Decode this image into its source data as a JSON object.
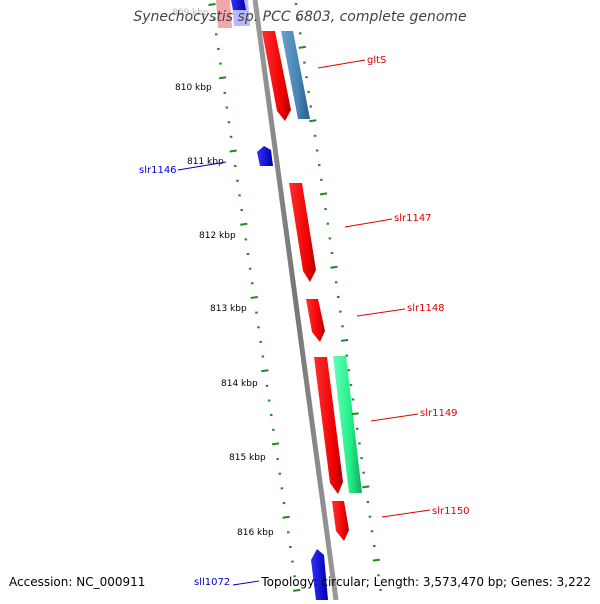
{
  "title": "Synechocystis sp. PCC 6803, complete genome",
  "accession": "Accession: NC_000911",
  "topology": "Topology: circular; Length: 3,573,470 bp; Genes: 3,222",
  "colors": {
    "forward_gene": "#ff0000",
    "reverse_gene": "#0000ff",
    "tick": "#1f8a1f",
    "backbone": "#8a8a8a",
    "steelblue_feature": "#4682b4",
    "aquamarine_feature": "#33ee99"
  },
  "map": {
    "kbp_labels": [
      "809 kbp",
      "810 kbp",
      "811 kbp",
      "812 kbp",
      "813 kbp",
      "814 kbp",
      "815 kbp",
      "816 kbp"
    ],
    "gene_labels": [
      {
        "name": "gltS",
        "strand": "forward"
      },
      {
        "name": "slr1146",
        "strand": "reverse"
      },
      {
        "name": "slr1147",
        "strand": "forward"
      },
      {
        "name": "slr1148",
        "strand": "forward"
      },
      {
        "name": "slr1149",
        "strand": "forward"
      },
      {
        "name": "slr1150",
        "strand": "forward"
      },
      {
        "name": "sll1072",
        "strand": "reverse"
      }
    ]
  }
}
